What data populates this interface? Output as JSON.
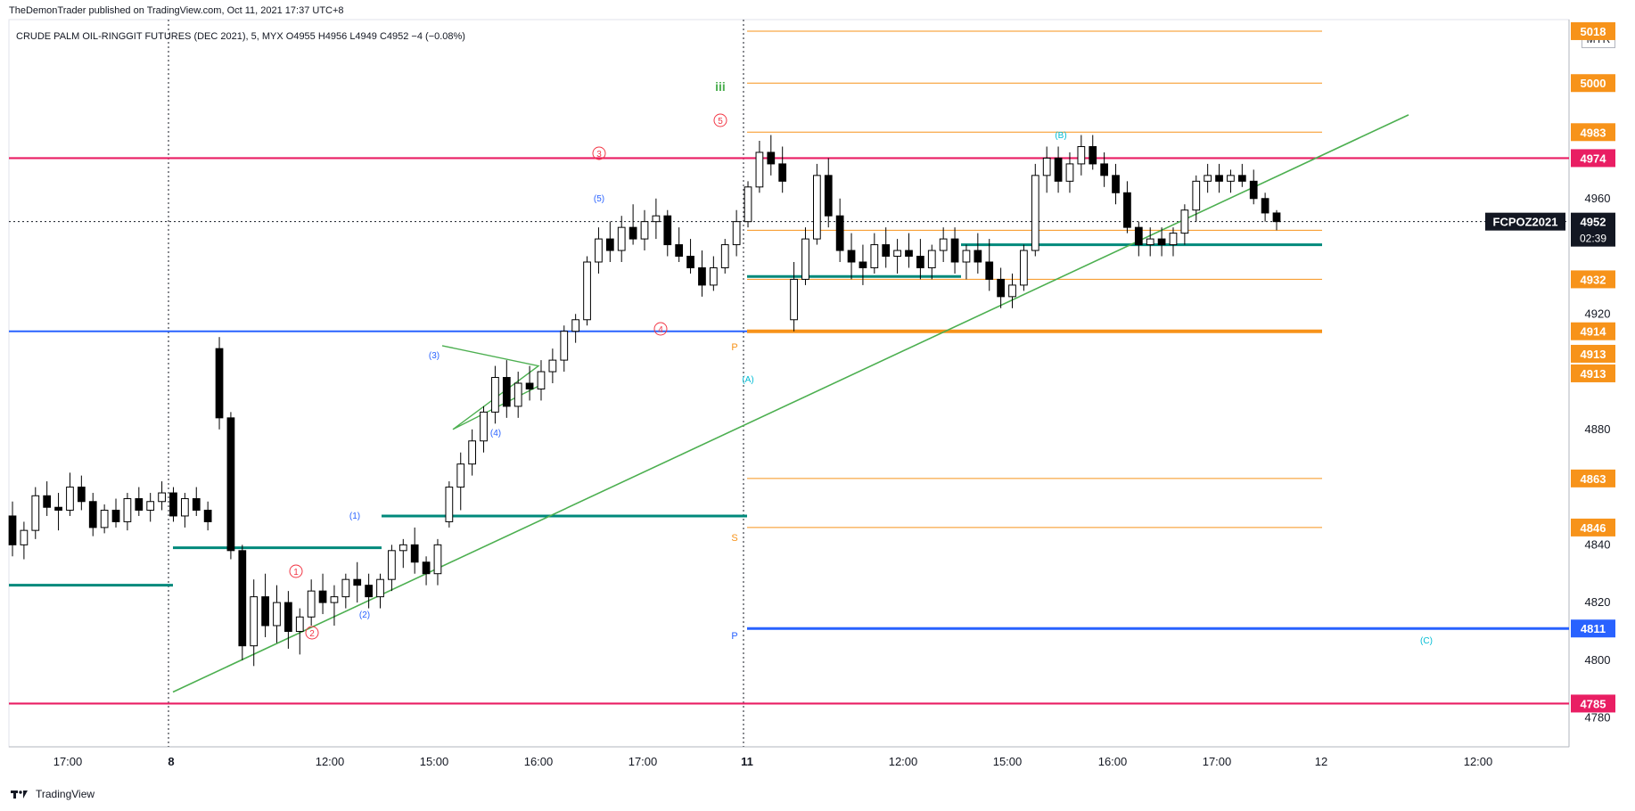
{
  "header": {
    "publisher_line": "TheDemonTrader published on TradingView.com, Oct 11, 2021 17:37 UTC+8",
    "symbol": "CRUDE PALM OIL-RINGGIT FUTURES (DEC 2021), 5, MYX",
    "ohlc": "O4955 H4956 L4949 C4952 −4 (−0.08%)"
  },
  "currency": "MYR",
  "footer": {
    "brand": "TradingView"
  },
  "colors": {
    "bull": "#ffffff",
    "bear": "#000000",
    "outline": "#000000",
    "magenta": "#e91e63",
    "blue": "#2962ff",
    "teal": "#00897b",
    "orange": "#f7931a",
    "green": "#4caf50",
    "red_label": "#f23645",
    "cyan": "#00bcd4"
  },
  "chart_data": {
    "type": "candlestick",
    "timeframe": "5",
    "y_axis_ticks": [
      4780,
      4800,
      4820,
      4840,
      4880,
      4920,
      4960
    ],
    "ylim": [
      4770,
      5022
    ],
    "x_axis_ticks": [
      {
        "label": "17:00",
        "bold": false
      },
      {
        "label": "8",
        "bold": true
      },
      {
        "label": "12:00",
        "bold": false
      },
      {
        "label": "15:00",
        "bold": false
      },
      {
        "label": "16:00",
        "bold": false
      },
      {
        "label": "17:00",
        "bold": false
      },
      {
        "label": "11",
        "bold": true
      },
      {
        "label": "12:00",
        "bold": false
      },
      {
        "label": "15:00",
        "bold": false
      },
      {
        "label": "16:00",
        "bold": false
      },
      {
        "label": "17:00",
        "bold": false
      },
      {
        "label": "12",
        "bold": false
      },
      {
        "label": "12:00",
        "bold": false
      }
    ],
    "last_price": {
      "symbol": "FCPOZ2021",
      "price": "4952",
      "countdown": "02:39",
      "value": 4952
    },
    "price_labels": [
      {
        "text": "5018",
        "value": 5018,
        "color": "#f7931a"
      },
      {
        "text": "5000",
        "value": 5000,
        "color": "#f7931a"
      },
      {
        "text": "4983",
        "value": 4983,
        "color": "#f7931a"
      },
      {
        "text": "4974",
        "value": 4974,
        "color": "#e91e63"
      },
      {
        "text": "4949",
        "value": 4949,
        "color": "#f7931a"
      },
      {
        "text": "4932",
        "value": 4932,
        "color": "#f7931a"
      },
      {
        "text": "4914",
        "value": 4914,
        "color": "#f7931a"
      },
      {
        "text": "4913",
        "value": 4913,
        "color": "#f7931a"
      },
      {
        "text": "4913",
        "value": 4913,
        "color": "#f7931a"
      },
      {
        "text": "4863",
        "value": 4863,
        "color": "#f7931a"
      },
      {
        "text": "4846",
        "value": 4846,
        "color": "#f7931a"
      },
      {
        "text": "4811",
        "value": 4811,
        "color": "#2962ff"
      },
      {
        "text": "4785",
        "value": 4785,
        "color": "#e91e63"
      }
    ],
    "pivot_labels": [
      "P",
      "S",
      "P"
    ],
    "wave_labels": [
      {
        "text": "iii",
        "style": "roman"
      },
      {
        "text": "5",
        "style": "circle"
      },
      {
        "text": "3",
        "style": "circle"
      },
      {
        "text": "4",
        "style": "circle"
      },
      {
        "text": "1",
        "style": "circle"
      },
      {
        "text": "2",
        "style": "circle"
      },
      {
        "text": "(5)",
        "style": "paren"
      },
      {
        "text": "(3)",
        "style": "paren"
      },
      {
        "text": "(4)",
        "style": "paren"
      },
      {
        "text": "(1)",
        "style": "paren"
      },
      {
        "text": "(2)",
        "style": "paren"
      },
      {
        "text": "(A)",
        "style": "paren"
      },
      {
        "text": "(B)",
        "style": "paren"
      },
      {
        "text": "(C)",
        "style": "paren"
      }
    ],
    "candles": [
      [
        4850,
        4855,
        4836,
        4840
      ],
      [
        4840,
        4848,
        4835,
        4845
      ],
      [
        4845,
        4860,
        4842,
        4857
      ],
      [
        4857,
        4862,
        4850,
        4853
      ],
      [
        4853,
        4858,
        4845,
        4852
      ],
      [
        4852,
        4865,
        4850,
        4860
      ],
      [
        4860,
        4864,
        4852,
        4855
      ],
      [
        4855,
        4858,
        4843,
        4846
      ],
      [
        4846,
        4854,
        4844,
        4852
      ],
      [
        4852,
        4856,
        4846,
        4848
      ],
      [
        4848,
        4858,
        4845,
        4856
      ],
      [
        4856,
        4860,
        4850,
        4852
      ],
      [
        4852,
        4858,
        4848,
        4855
      ],
      [
        4855,
        4862,
        4852,
        4858
      ],
      [
        4858,
        4860,
        4848,
        4850
      ],
      [
        4850,
        4858,
        4846,
        4856
      ],
      [
        4856,
        4860,
        4850,
        4852
      ],
      [
        4852,
        4855,
        4845,
        4848
      ],
      [
        4908,
        4912,
        4880,
        4884
      ],
      [
        4884,
        4886,
        4835,
        4838
      ],
      [
        4838,
        4840,
        4800,
        4805
      ],
      [
        4805,
        4828,
        4798,
        4822
      ],
      [
        4822,
        4830,
        4808,
        4812
      ],
      [
        4812,
        4826,
        4806,
        4820
      ],
      [
        4820,
        4824,
        4804,
        4810
      ],
      [
        4810,
        4818,
        4802,
        4815
      ],
      [
        4815,
        4828,
        4812,
        4824
      ],
      [
        4824,
        4830,
        4816,
        4820
      ],
      [
        4820,
        4826,
        4812,
        4822
      ],
      [
        4822,
        4830,
        4818,
        4828
      ],
      [
        4828,
        4834,
        4820,
        4826
      ],
      [
        4826,
        4830,
        4818,
        4822
      ],
      [
        4822,
        4830,
        4818,
        4828
      ],
      [
        4828,
        4840,
        4824,
        4838
      ],
      [
        4838,
        4842,
        4832,
        4840
      ],
      [
        4840,
        4846,
        4830,
        4834
      ],
      [
        4834,
        4836,
        4826,
        4830
      ],
      [
        4830,
        4842,
        4826,
        4840
      ],
      [
        4848,
        4862,
        4846,
        4860
      ],
      [
        4860,
        4872,
        4852,
        4868
      ],
      [
        4868,
        4880,
        4864,
        4876
      ],
      [
        4876,
        4888,
        4872,
        4886
      ],
      [
        4886,
        4902,
        4882,
        4898
      ],
      [
        4898,
        4904,
        4884,
        4888
      ],
      [
        4888,
        4900,
        4884,
        4896
      ],
      [
        4896,
        4902,
        4890,
        4894
      ],
      [
        4894,
        4904,
        4890,
        4900
      ],
      [
        4900,
        4908,
        4896,
        4904
      ],
      [
        4904,
        4916,
        4900,
        4914
      ],
      [
        4914,
        4920,
        4910,
        4918
      ],
      [
        4918,
        4940,
        4916,
        4938
      ],
      [
        4938,
        4950,
        4934,
        4946
      ],
      [
        4946,
        4952,
        4938,
        4942
      ],
      [
        4942,
        4954,
        4938,
        4950
      ],
      [
        4950,
        4958,
        4944,
        4946
      ],
      [
        4946,
        4956,
        4942,
        4952
      ],
      [
        4952,
        4960,
        4946,
        4954
      ],
      [
        4954,
        4956,
        4940,
        4944
      ],
      [
        4944,
        4950,
        4938,
        4940
      ],
      [
        4940,
        4946,
        4934,
        4936
      ],
      [
        4936,
        4942,
        4926,
        4930
      ],
      [
        4930,
        4940,
        4928,
        4936
      ],
      [
        4936,
        4946,
        4934,
        4944
      ],
      [
        4944,
        4956,
        4940,
        4952
      ],
      [
        4952,
        4966,
        4950,
        4964
      ],
      [
        4964,
        4980,
        4962,
        4976
      ],
      [
        4976,
        4982,
        4968,
        4972
      ],
      [
        4972,
        4978,
        4962,
        4966
      ],
      [
        4918,
        4938,
        4914,
        4932
      ],
      [
        4932,
        4950,
        4930,
        4946
      ],
      [
        4946,
        4972,
        4944,
        4968
      ],
      [
        4968,
        4974,
        4950,
        4954
      ],
      [
        4954,
        4960,
        4938,
        4942
      ],
      [
        4942,
        4948,
        4932,
        4938
      ],
      [
        4938,
        4944,
        4930,
        4936
      ],
      [
        4936,
        4948,
        4934,
        4944
      ],
      [
        4944,
        4950,
        4936,
        4940
      ],
      [
        4940,
        4946,
        4934,
        4942
      ],
      [
        4942,
        4948,
        4936,
        4940
      ],
      [
        4940,
        4946,
        4932,
        4936
      ],
      [
        4936,
        4944,
        4932,
        4942
      ],
      [
        4942,
        4950,
        4938,
        4946
      ],
      [
        4946,
        4950,
        4934,
        4938
      ],
      [
        4938,
        4944,
        4932,
        4942
      ],
      [
        4942,
        4948,
        4934,
        4938
      ],
      [
        4938,
        4946,
        4928,
        4932
      ],
      [
        4932,
        4936,
        4922,
        4926
      ],
      [
        4926,
        4934,
        4922,
        4930
      ],
      [
        4930,
        4944,
        4928,
        4942
      ],
      [
        4942,
        4972,
        4940,
        4968
      ],
      [
        4968,
        4978,
        4962,
        4974
      ],
      [
        4974,
        4978,
        4962,
        4966
      ],
      [
        4966,
        4976,
        4962,
        4972
      ],
      [
        4972,
        4982,
        4968,
        4978
      ],
      [
        4978,
        4982,
        4970,
        4972
      ],
      [
        4972,
        4976,
        4964,
        4968
      ],
      [
        4968,
        4972,
        4958,
        4962
      ],
      [
        4962,
        4966,
        4948,
        4950
      ],
      [
        4950,
        4952,
        4940,
        4944
      ],
      [
        4944,
        4950,
        4940,
        4946
      ],
      [
        4946,
        4950,
        4940,
        4944
      ],
      [
        4944,
        4950,
        4940,
        4948
      ],
      [
        4948,
        4958,
        4944,
        4956
      ],
      [
        4956,
        4968,
        4952,
        4966
      ],
      [
        4966,
        4972,
        4962,
        4968
      ],
      [
        4968,
        4972,
        4962,
        4966
      ],
      [
        4966,
        4970,
        4962,
        4968
      ],
      [
        4968,
        4972,
        4964,
        4966
      ],
      [
        4966,
        4970,
        4958,
        4960
      ],
      [
        4960,
        4962,
        4952,
        4955
      ],
      [
        4955,
        4956,
        4949,
        4952
      ]
    ]
  }
}
